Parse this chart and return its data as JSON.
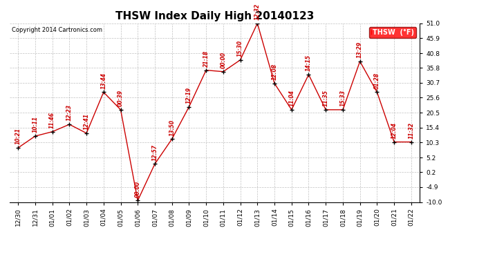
{
  "title": "THSW Index Daily High 20140123",
  "copyright": "Copyright 2014 Cartronics.com",
  "legend_label": "THSW  (°F)",
  "ylim": [
    -10.0,
    51.0
  ],
  "yticks": [
    -10.0,
    -4.9,
    0.2,
    5.2,
    10.3,
    15.4,
    20.5,
    25.6,
    30.7,
    35.8,
    40.8,
    45.9,
    51.0
  ],
  "x_labels": [
    "12/30",
    "12/31",
    "01/01",
    "01/02",
    "01/03",
    "01/04",
    "01/05",
    "01/06",
    "01/07",
    "01/08",
    "01/09",
    "01/10",
    "01/11",
    "01/12",
    "01/13",
    "01/14",
    "01/15",
    "01/16",
    "01/17",
    "01/18",
    "01/19",
    "01/20",
    "01/21",
    "01/22"
  ],
  "y_values": [
    8.5,
    12.5,
    14.0,
    16.5,
    13.5,
    27.5,
    21.5,
    -9.5,
    3.0,
    11.5,
    22.5,
    35.0,
    34.5,
    38.5,
    51.0,
    30.5,
    21.5,
    33.5,
    21.5,
    21.5,
    38.0,
    27.5,
    10.5,
    10.5
  ],
  "time_labels": [
    "10:21",
    "10:11",
    "11:46",
    "12:23",
    "12:41",
    "13:44",
    "00:39",
    "00:00",
    "12:57",
    "13:50",
    "12:19",
    "21:18",
    "00:00",
    "15:30",
    "12:32",
    "12:08",
    "11:04",
    "14:15",
    "11:35",
    "15:33",
    "13:29",
    "01:28",
    "12:04",
    "11:32"
  ],
  "line_color": "#cc0000",
  "marker_color": "#000000",
  "background_color": "#ffffff",
  "grid_color": "#c0c0c0",
  "title_fontsize": 11,
  "annotation_fontsize": 5.5,
  "tick_fontsize": 6.5,
  "copyright_fontsize": 6.0,
  "legend_fontsize": 7.0,
  "figsize": [
    6.9,
    3.75
  ],
  "dpi": 100
}
